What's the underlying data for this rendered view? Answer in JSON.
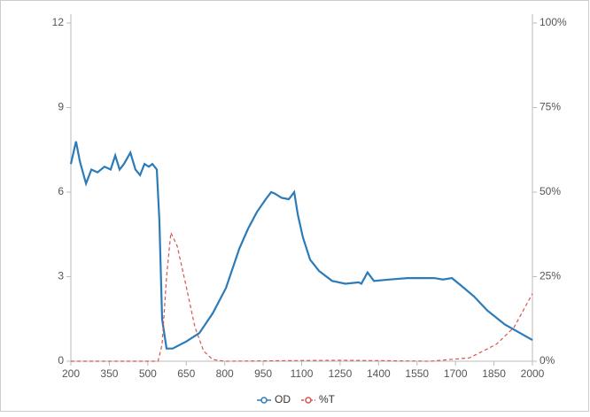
{
  "chart_data": {
    "type": "line",
    "xlim": [
      200,
      2000
    ],
    "xticks": [
      200,
      350,
      500,
      650,
      800,
      950,
      1100,
      1250,
      1400,
      1550,
      1700,
      1850,
      2000
    ],
    "ylim": [
      0,
      12
    ],
    "yticks": [
      0,
      3,
      6,
      9,
      12
    ],
    "y2lim": [
      0,
      100
    ],
    "y2ticks": [
      {
        "value": 0,
        "label": "0%"
      },
      {
        "value": 25,
        "label": "25%"
      },
      {
        "value": 50,
        "label": "50%"
      },
      {
        "value": 75,
        "label": "75%"
      },
      {
        "value": 100,
        "label": "100%"
      }
    ],
    "legend": "bottom",
    "series": [
      {
        "name": "OD",
        "color": "#2b7bb9",
        "dashed": false,
        "x": [
          200,
          220,
          235,
          259,
          280,
          304,
          331,
          355,
          373,
          390,
          407,
          432,
          452,
          470,
          487,
          504,
          518,
          535,
          545,
          556,
          573,
          597,
          650,
          701,
          753,
          805,
          857,
          891,
          926,
          960,
          981,
          995,
          1022,
          1050,
          1071,
          1085,
          1105,
          1133,
          1168,
          1219,
          1271,
          1323,
          1333,
          1357,
          1382,
          1444,
          1513,
          1617,
          1651,
          1686,
          1720,
          1772,
          1824,
          1893,
          1962,
          2000
        ],
        "values": [
          7.0,
          7.8,
          7.1,
          6.3,
          6.8,
          6.7,
          6.9,
          6.8,
          7.3,
          6.8,
          7.0,
          7.4,
          6.8,
          6.6,
          7.0,
          6.9,
          7.0,
          6.8,
          5.0,
          1.5,
          0.45,
          0.45,
          0.7,
          1.0,
          1.7,
          2.6,
          4.0,
          4.7,
          5.3,
          5.75,
          6.0,
          5.95,
          5.8,
          5.75,
          6.0,
          5.2,
          4.4,
          3.6,
          3.2,
          2.85,
          2.75,
          2.8,
          2.75,
          3.15,
          2.85,
          2.9,
          2.95,
          2.95,
          2.9,
          2.95,
          2.7,
          2.3,
          1.8,
          1.3,
          0.95,
          0.75
        ]
      },
      {
        "name": "%T",
        "color": "#d9534f",
        "dashed": true,
        "axis": "y2",
        "x": [
          200,
          540,
          556,
          573,
          590,
          615,
          650,
          684,
          718,
          753,
          800,
          1250,
          1600,
          1755,
          1859,
          1928,
          2000
        ],
        "values": [
          0,
          0,
          5,
          25,
          38,
          34,
          22,
          10,
          3,
          0.5,
          0,
          0.3,
          0,
          1,
          5,
          10,
          20
        ]
      }
    ]
  }
}
